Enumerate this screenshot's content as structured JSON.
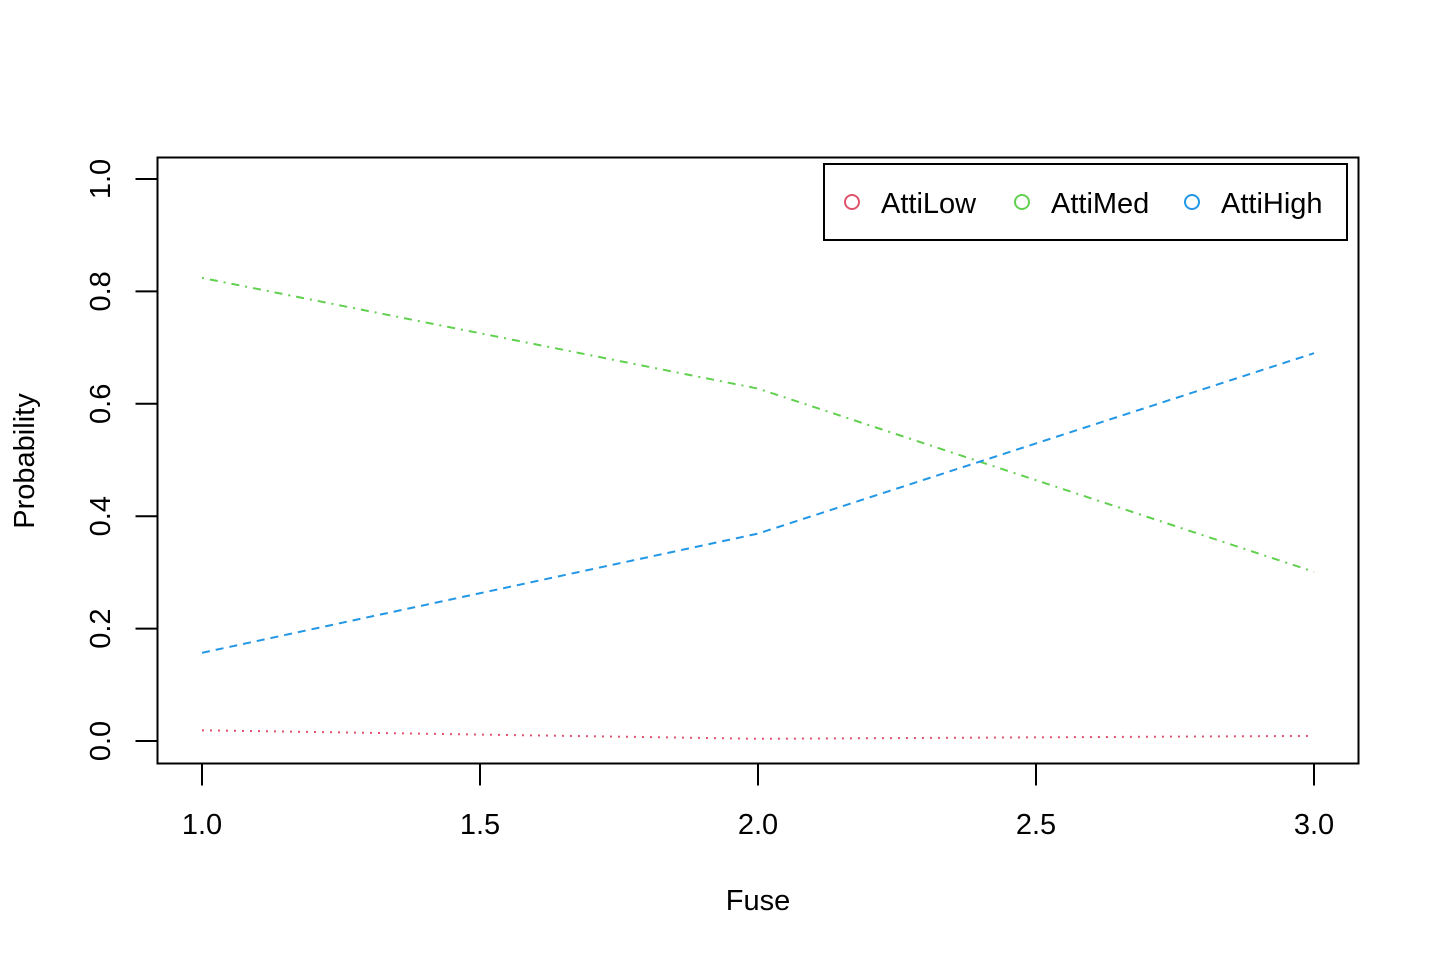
{
  "chart_data": {
    "type": "line",
    "title": "",
    "xlabel": "Fuse",
    "ylabel": "Probability",
    "xlim": [
      1.0,
      3.0
    ],
    "ylim": [
      0.0,
      1.0
    ],
    "x_ticks": [
      "1.0",
      "1.5",
      "2.0",
      "2.5",
      "3.0"
    ],
    "y_ticks": [
      "0.0",
      "0.2",
      "0.4",
      "0.6",
      "0.8",
      "1.0"
    ],
    "grid": false,
    "legend_position": "top-right",
    "legend_horizontal": true,
    "x": [
      1,
      2,
      3
    ],
    "series": [
      {
        "name": "AttiLow",
        "color": "#DF536B",
        "line_style": "dotted",
        "values": [
          0.019,
          0.004,
          0.009
        ]
      },
      {
        "name": "AttiMed",
        "color": "#61D04F",
        "line_style": "dotdash",
        "values": [
          0.824,
          0.627,
          0.301
        ]
      },
      {
        "name": "AttiHigh",
        "color": "#2297E6",
        "line_style": "dashed",
        "values": [
          0.157,
          0.369,
          0.69
        ]
      }
    ]
  }
}
